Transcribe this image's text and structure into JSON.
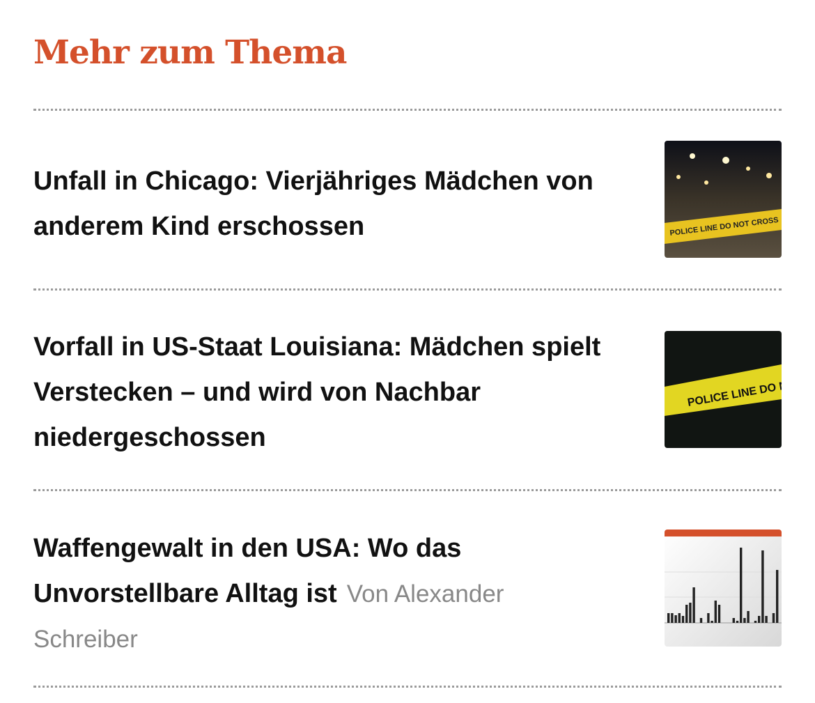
{
  "section": {
    "title": "Mehr zum Thema",
    "accent_color": "#d4502b"
  },
  "articles": [
    {
      "title": "Unfall in Chicago: Vierjähriges Mädchen von anderem Kind erschossen",
      "thumbnail": "police-tape-night-street-image",
      "thumbnail_text": "POLICE LINE DO NOT CROSS"
    },
    {
      "title": "Vorfall in US-Staat Louisiana: Mädchen spielt Verstecken – und wird von Nachbar niedergeschossen",
      "thumbnail": "police-tape-dark-image",
      "thumbnail_text": "POLICE LINE DO NOT"
    },
    {
      "title": "Waffengewalt in den USA: Wo das Unvorstellbare Alltag ist",
      "author": "Von Alexander Schreiber",
      "thumbnail": "bar-chart-image"
    }
  ]
}
